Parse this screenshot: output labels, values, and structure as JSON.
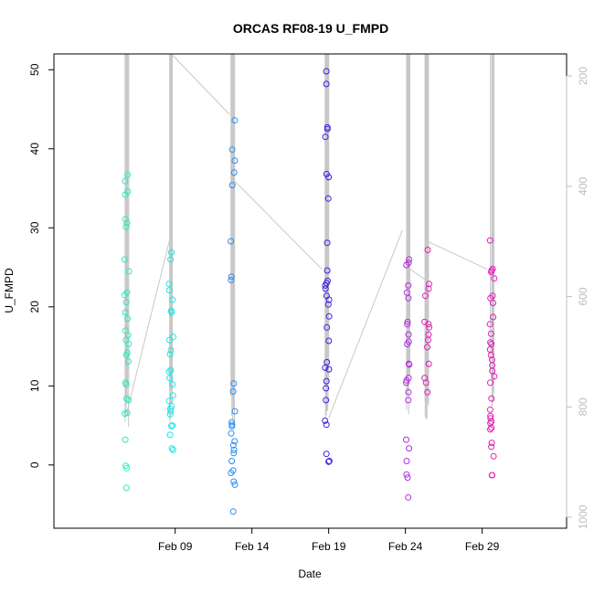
{
  "chart_data": {
    "type": "scatter",
    "title": "ORCAS RF08-19 U_FMPD",
    "xlabel": "Date",
    "ylabel": "U_FMPD",
    "ylim": [
      -8,
      52
    ],
    "y_ticks": [
      0,
      10,
      20,
      30,
      40,
      50
    ],
    "xlim_days": [
      -7.9,
      25.5
    ],
    "x_ticks": [
      {
        "day": 0,
        "label": "Feb 09"
      },
      {
        "day": 5,
        "label": "Feb 14"
      },
      {
        "day": 10,
        "label": "Feb 19"
      },
      {
        "day": 15,
        "label": "Feb 24"
      },
      {
        "day": 20,
        "label": "Feb 29"
      }
    ],
    "right_axis": {
      "label": "",
      "reversed": true,
      "range": [
        160,
        1020
      ],
      "ticks": [
        200,
        400,
        600,
        800,
        1000
      ],
      "color": "#bdbdbd"
    },
    "grid": false,
    "legend": "none",
    "series": [
      {
        "color": "#2ee8c0",
        "flights": [
          {
            "center": -3.15,
            "values": [
              36.7,
              35.9,
              34.6,
              34.2,
              31.1,
              30.6,
              30.1,
              26.0,
              24.5,
              21.8,
              21.5,
              20.6,
              19.3,
              18.5,
              17.0,
              16.4,
              15.8,
              15.3,
              14.2,
              13.9,
              13.1,
              10.4,
              10.2,
              8.4,
              8.2,
              6.6,
              6.5,
              3.2,
              -0.4,
              -0.1,
              -2.9
            ]
          }
        ]
      },
      {
        "color": "#22e4e4",
        "flights": [
          {
            "center": -0.25,
            "values": [
              26.9,
              26.0,
              22.9,
              22.1,
              20.9,
              19.5,
              19.3,
              16.2,
              15.8,
              14.5,
              14.0,
              12.0,
              11.8,
              11.0,
              10.2,
              8.8,
              8.1,
              7.4,
              7.1,
              6.8,
              6.4,
              5.0,
              4.9,
              3.8,
              2.1,
              1.9
            ]
          }
        ]
      },
      {
        "color": "#2b8ef0",
        "flights": [
          {
            "center": 3.75,
            "values": [
              43.6,
              39.9,
              38.5,
              37.0,
              35.4,
              28.3,
              23.8,
              23.4,
              10.3,
              9.3,
              6.8,
              5.4,
              5.1,
              4.9,
              4.0,
              3.0,
              2.5,
              1.9,
              1.5,
              0.5,
              -0.7,
              -1.0,
              -2.1,
              -2.5,
              -5.9
            ]
          }
        ]
      },
      {
        "color": "#3a1fe0",
        "flights": [
          {
            "center": 9.9,
            "values": [
              49.8,
              48.2,
              42.7,
              42.5,
              41.5,
              36.8,
              36.4,
              33.7,
              28.1,
              24.6,
              23.3,
              23.0,
              22.7,
              22.3,
              21.4,
              20.9,
              20.3,
              18.8,
              17.4,
              15.7,
              13.0,
              12.3,
              12.1,
              10.6,
              9.7,
              8.2,
              5.6,
              5.1,
              1.4,
              0.5,
              0.4
            ]
          }
        ]
      },
      {
        "color": "#b52de0",
        "flights": [
          {
            "center": 15.2,
            "values": [
              26.0,
              25.6,
              25.3,
              22.7,
              21.8,
              21.1,
              18.1,
              17.8,
              16.5,
              15.6,
              15.3,
              12.8,
              12.7,
              11.0,
              10.7,
              10.4,
              9.2,
              8.2,
              3.2,
              2.1,
              0.5,
              -1.2,
              -1.6,
              -4.1
            ]
          }
        ]
      },
      {
        "color": "#e020b8",
        "flights": [
          {
            "center": 16.4,
            "values": [
              27.2,
              22.9,
              22.3,
              21.4,
              18.1,
              17.8,
              17.4,
              16.5,
              15.8,
              14.9,
              12.8,
              11.0,
              10.4,
              9.2
            ]
          },
          {
            "center": 20.65,
            "values": [
              28.4,
              24.8,
              24.6,
              24.4,
              23.6,
              21.4,
              21.1,
              20.5,
              18.7,
              17.8,
              16.6,
              15.5,
              15.3,
              14.6,
              13.9,
              13.3,
              12.6,
              11.9,
              11.2,
              10.4,
              8.4,
              7.0,
              6.2,
              5.9,
              5.5,
              5.3,
              4.7,
              4.5,
              2.8,
              2.3,
              1.1,
              -1.3,
              -1.3
            ]
          }
        ]
      }
    ],
    "pressure_trace": {
      "color": "#c8c8c8",
      "connectors": [
        {
          "from": [
            -3.15,
            810
          ],
          "to": [
            -0.3,
            490
          ]
        },
        {
          "from": [
            -0.25,
            160
          ],
          "to": [
            3.55,
            270
          ]
        },
        {
          "from": [
            3.85,
            390
          ],
          "to": [
            9.55,
            550
          ]
        },
        {
          "from": [
            10.0,
            820
          ],
          "to": [
            14.8,
            480
          ]
        },
        {
          "from": [
            15.3,
            550
          ],
          "to": [
            16.3,
            570
          ]
        },
        {
          "from": [
            16.45,
            500
          ],
          "to": [
            20.3,
            550
          ]
        }
      ],
      "columns": [
        {
          "center": -3.15,
          "top": 160,
          "bottom": 840
        },
        {
          "center": -0.25,
          "top": 160,
          "bottom": 830
        },
        {
          "center": 3.75,
          "top": 160,
          "bottom": 840
        },
        {
          "center": 9.9,
          "top": 160,
          "bottom": 820
        },
        {
          "center": 15.2,
          "top": 160,
          "bottom": 830
        },
        {
          "center": 16.4,
          "top": 160,
          "bottom": 830
        },
        {
          "center": 20.65,
          "top": 160,
          "bottom": 800
        }
      ]
    }
  }
}
